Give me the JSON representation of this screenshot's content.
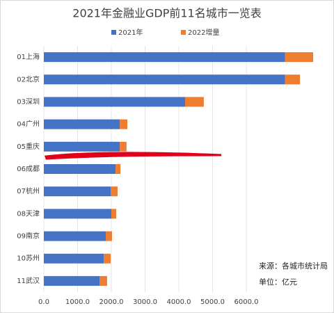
{
  "chart_data": {
    "type": "stacked-bar-horizontal",
    "title": "2021年金融业GDP前11名城市一览表",
    "categories": [
      "01上海",
      "02北京",
      "03深圳",
      "04广州",
      "05重庆",
      "06成都",
      "07杭州",
      "08天津",
      "09南京",
      "10苏州",
      "11武汉"
    ],
    "series": [
      {
        "name": "2021年",
        "color": "#4472c4",
        "values": [
          7150,
          7150,
          4185,
          2250,
          2250,
          2125,
          1980,
          2000,
          1835,
          1775,
          1650
        ]
      },
      {
        "name": "2022增量",
        "color": "#ed7d31",
        "values": [
          830,
          440,
          555,
          225,
          200,
          145,
          205,
          145,
          185,
          205,
          225
        ]
      }
    ],
    "xlim": [
      0,
      8000
    ],
    "xticks": [
      {
        "value": 0,
        "label": "0.0"
      },
      {
        "value": 1000,
        "label": "1000.0"
      },
      {
        "value": 2000,
        "label": "2000.0"
      },
      {
        "value": 3000,
        "label": "3000.0"
      },
      {
        "value": 4000,
        "label": "4000.0"
      },
      {
        "value": 5000,
        "label": "5000.0"
      },
      {
        "value": 6000,
        "label": "6000.0"
      }
    ],
    "grid": true,
    "legend": "top",
    "annotations": [
      "来源：各城市统计局",
      "单位：亿元"
    ]
  }
}
